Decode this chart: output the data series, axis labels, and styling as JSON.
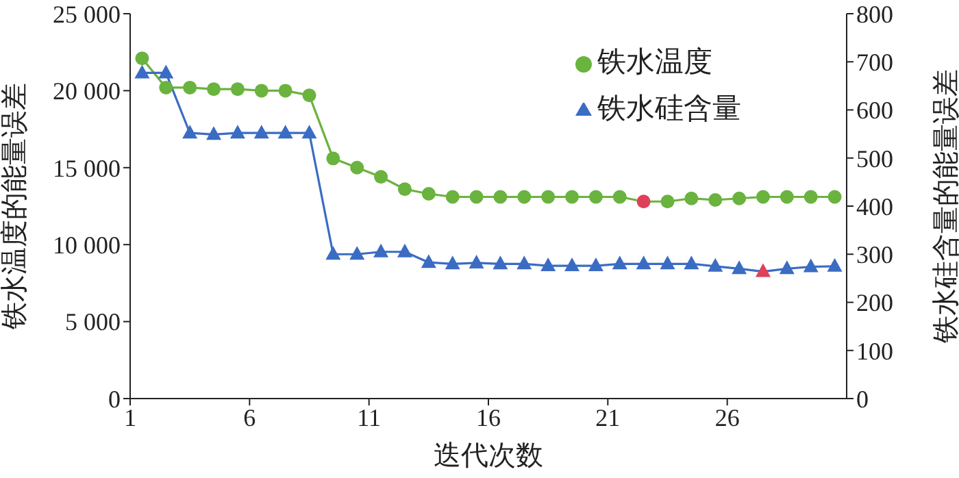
{
  "chart_data": {
    "type": "line",
    "xlabel": "迭代次数",
    "ylabel": "铁水温度的能量误差",
    "y2label": "铁水硅含量的能量误差",
    "x": [
      1.5,
      2.5,
      3.5,
      4.5,
      5.5,
      6.5,
      7.5,
      8.5,
      9.5,
      10.5,
      11.5,
      12.5,
      13.5,
      14.5,
      15.5,
      16.5,
      17.5,
      18.5,
      19.5,
      20.5,
      21.5,
      22.5,
      23.5,
      24.5,
      25.5,
      26.5,
      27.5,
      28.5,
      29.5,
      30.5
    ],
    "series": [
      {
        "name": "铁水温度",
        "color": "#6ab33e",
        "marker": "circle",
        "values": [
          22100,
          20200,
          20200,
          20100,
          20100,
          20000,
          20000,
          19700,
          15600,
          15000,
          14400,
          13600,
          13300,
          13100,
          13100,
          13100,
          13100,
          13100,
          13100,
          13100,
          13100,
          12800,
          12800,
          13000,
          12900,
          13000,
          13100,
          13100,
          13100,
          13100
        ],
        "colors": [
          "#6ab33e",
          "#6ab33e",
          "#6ab33e",
          "#6ab33e",
          "#6ab33e",
          "#6ab33e",
          "#6ab33e",
          "#6ab33e",
          "#6ab33e",
          "#6ab33e",
          "#6ab33e",
          "#6ab33e",
          "#6ab33e",
          "#6ab33e",
          "#6ab33e",
          "#6ab33e",
          "#6ab33e",
          "#6ab33e",
          "#6ab33e",
          "#6ab33e",
          "#6ab33e",
          "#e0405a",
          "#6ab33e",
          "#6ab33e",
          "#6ab33e",
          "#6ab33e",
          "#6ab33e",
          "#6ab33e",
          "#6ab33e",
          "#6ab33e"
        ]
      },
      {
        "name": "铁水硅含量",
        "color": "#3b6cc4",
        "marker": "triangle",
        "axis": "y2",
        "values": [
          677,
          677,
          552,
          549,
          552,
          552,
          552,
          552,
          300,
          300,
          305,
          305,
          283,
          280,
          282,
          280,
          280,
          276,
          276,
          276,
          280,
          280,
          280,
          280,
          275,
          270,
          264,
          270,
          274,
          275
        ],
        "colors": [
          "#3b6cc4",
          "#3b6cc4",
          "#3b6cc4",
          "#3b6cc4",
          "#3b6cc4",
          "#3b6cc4",
          "#3b6cc4",
          "#3b6cc4",
          "#3b6cc4",
          "#3b6cc4",
          "#3b6cc4",
          "#3b6cc4",
          "#3b6cc4",
          "#3b6cc4",
          "#3b6cc4",
          "#3b6cc4",
          "#3b6cc4",
          "#3b6cc4",
          "#3b6cc4",
          "#3b6cc4",
          "#3b6cc4",
          "#3b6cc4",
          "#3b6cc4",
          "#3b6cc4",
          "#3b6cc4",
          "#3b6cc4",
          "#e0405a",
          "#3b6cc4",
          "#3b6cc4",
          "#3b6cc4"
        ]
      }
    ],
    "xlim": [
      1,
      31
    ],
    "xticks": [
      1,
      6,
      11,
      16,
      21,
      26
    ],
    "ylim": [
      0,
      25000
    ],
    "yticks": [
      0,
      {
        "value": 5000,
        "label": "5 000"
      },
      {
        "value": 10000,
        "label": "10 000"
      },
      {
        "value": 15000,
        "label": "15 000"
      },
      {
        "value": 20000,
        "label": "20 000"
      },
      {
        "value": 25000,
        "label": "25 000"
      }
    ],
    "y2lim": [
      0,
      800
    ],
    "y2ticks": [
      0,
      100,
      200,
      300,
      400,
      500,
      600,
      700,
      800
    ],
    "grid": false,
    "legend": "top right",
    "line_style": "solid"
  }
}
